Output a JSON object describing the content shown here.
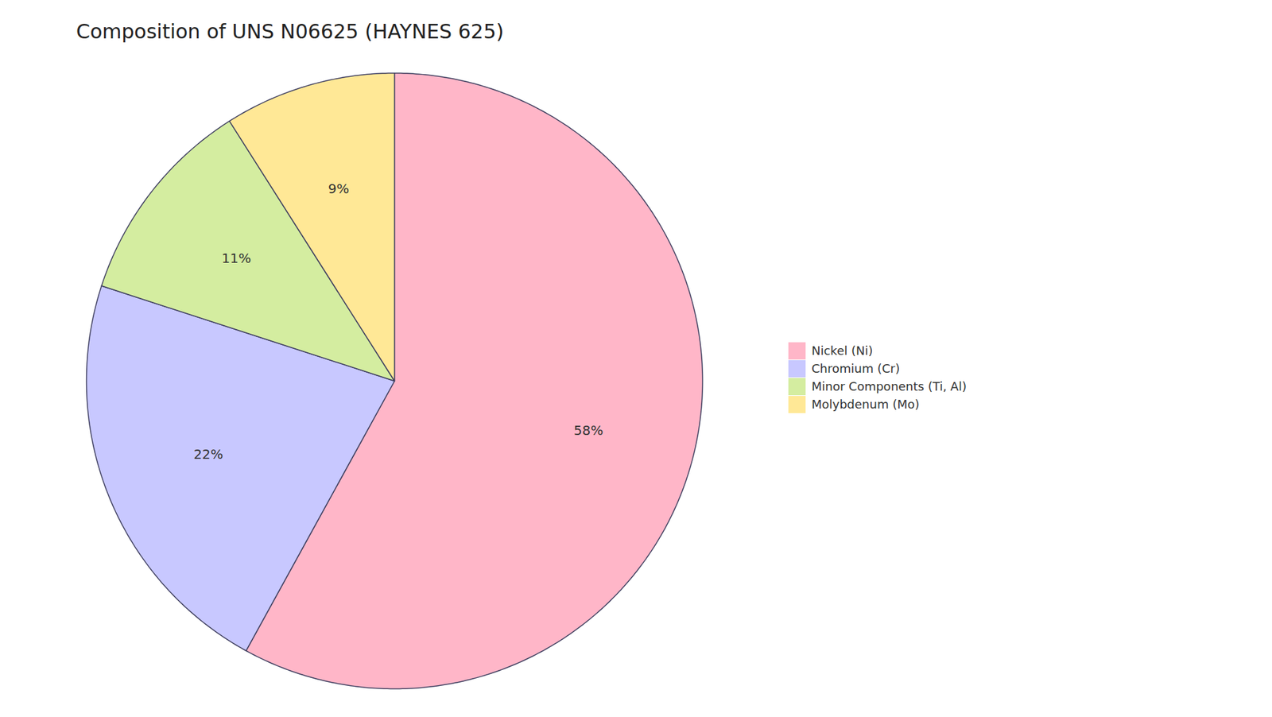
{
  "chart_data": {
    "type": "pie",
    "title": "Composition of UNS N06625 (HAYNES 625)",
    "categories": [
      "Nickel (Ni)",
      "Chromium (Cr)",
      "Minor Components (Ti, Al)",
      "Molybdenum (Mo)"
    ],
    "values": [
      58,
      22,
      11,
      9
    ],
    "value_labels": [
      "58%",
      "22%",
      "11%",
      "9%"
    ],
    "colors": [
      "#FFB6C8",
      "#C8C8FF",
      "#D4EDA0",
      "#FFE896"
    ],
    "data_labels": true,
    "legend": "right"
  }
}
